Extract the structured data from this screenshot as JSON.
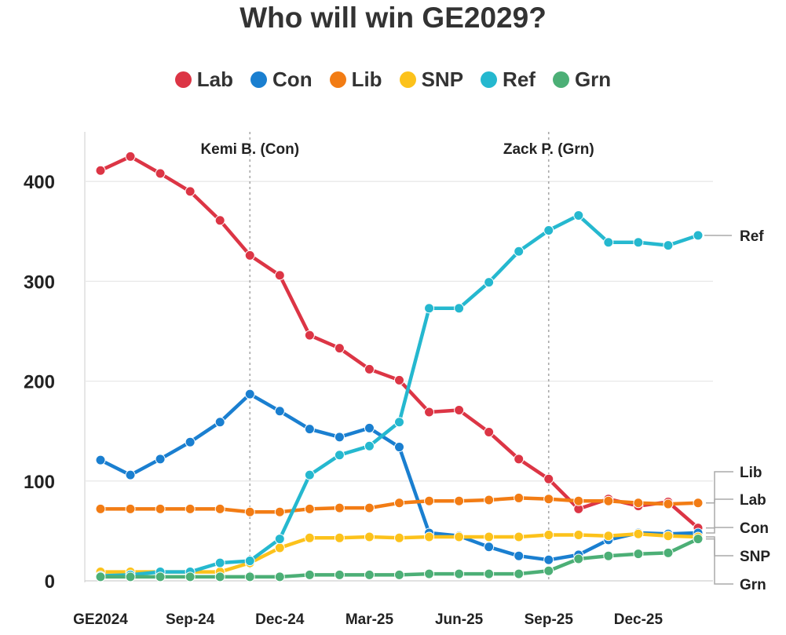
{
  "chart_data": {
    "type": "line",
    "title": "Who will win GE2029?",
    "xlabel": "",
    "ylabel": "",
    "ylim": [
      0,
      450
    ],
    "yticks": [
      0,
      100,
      200,
      300,
      400
    ],
    "grid": true,
    "legend_position": "top",
    "x_tick_labels": [
      {
        "index": 0,
        "label": "GE2024"
      },
      {
        "index": 3,
        "label": "Sep-24"
      },
      {
        "index": 6,
        "label": "Dec-24"
      },
      {
        "index": 9,
        "label": "Mar-25"
      },
      {
        "index": 12,
        "label": "Jun-25"
      },
      {
        "index": 15,
        "label": "Sep-25"
      },
      {
        "index": 18,
        "label": "Dec-25"
      }
    ],
    "annotations": [
      {
        "index": 5,
        "label": "Kemi B. (Con)"
      },
      {
        "index": 15,
        "label": "Zack P. (Grn)"
      }
    ],
    "series": [
      {
        "name": "Lab",
        "color": "#dc3545",
        "values": [
          411,
          425,
          408,
          390,
          361,
          326,
          306,
          246,
          233,
          212,
          201,
          169,
          171,
          149,
          122,
          102,
          72,
          82,
          75,
          79,
          53
        ]
      },
      {
        "name": "Con",
        "color": "#1a7fd0",
        "values": [
          121,
          106,
          122,
          139,
          159,
          187,
          170,
          152,
          144,
          153,
          134,
          48,
          45,
          34,
          25,
          21,
          26,
          41,
          48,
          47,
          48
        ]
      },
      {
        "name": "Lib",
        "color": "#f27c14",
        "values": [
          72,
          72,
          72,
          72,
          72,
          69,
          69,
          72,
          73,
          73,
          78,
          80,
          80,
          81,
          83,
          82,
          80,
          80,
          78,
          77,
          78
        ]
      },
      {
        "name": "SNP",
        "color": "#fcc21b",
        "values": [
          9,
          9,
          9,
          9,
          9,
          18,
          33,
          43,
          43,
          44,
          43,
          44,
          44,
          44,
          44,
          46,
          46,
          45,
          47,
          45,
          44
        ]
      },
      {
        "name": "Ref",
        "color": "#25b8cf",
        "values": [
          5,
          6,
          9,
          9,
          18,
          20,
          42,
          106,
          126,
          135,
          159,
          273,
          273,
          299,
          330,
          351,
          366,
          339,
          339,
          336,
          346
        ]
      },
      {
        "name": "Grn",
        "color": "#4caf76",
        "values": [
          4,
          4,
          4,
          4,
          4,
          4,
          4,
          6,
          6,
          6,
          6,
          7,
          7,
          7,
          7,
          10,
          22,
          25,
          27,
          28,
          42
        ]
      }
    ],
    "end_labels": [
      {
        "name": "Ref",
        "color": "#25b8cf"
      },
      {
        "name": "Lib",
        "color": "#f27c14"
      },
      {
        "name": "Lab",
        "color": "#dc3545"
      },
      {
        "name": "Con",
        "color": "#1a7fd0"
      },
      {
        "name": "SNP",
        "color": "#fcc21b"
      },
      {
        "name": "Grn",
        "color": "#4caf76"
      }
    ]
  }
}
